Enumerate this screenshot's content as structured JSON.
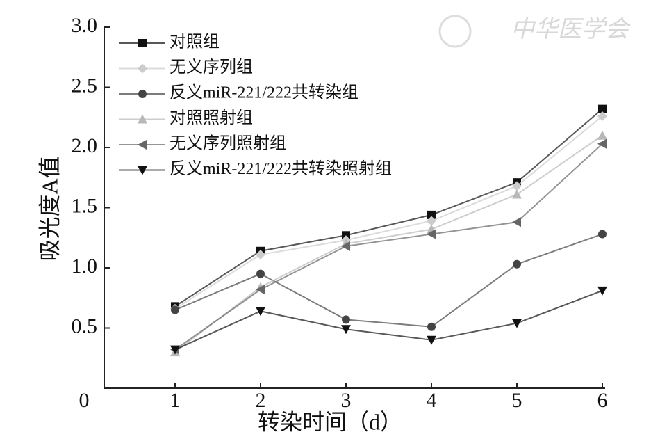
{
  "chart_data": {
    "type": "line",
    "watermark": "中华医学会",
    "xlabel": "转染时间（d）",
    "ylabel": "吸光度A值",
    "xlim": [
      0,
      6
    ],
    "xticks": [
      0,
      1,
      2,
      3,
      4,
      5,
      6
    ],
    "ylim": [
      0,
      3.0
    ],
    "yticks": [
      {
        "value": 0.5,
        "label": "0.5"
      },
      {
        "value": 1.0,
        "label": "1.0"
      },
      {
        "value": 1.5,
        "label": "1.5"
      },
      {
        "value": 2.0,
        "label": "2.0"
      },
      {
        "value": 2.5,
        "label": "2.5"
      },
      {
        "value": 3.0,
        "label": "3.0"
      }
    ],
    "x": [
      1,
      2,
      3,
      4,
      5,
      6
    ],
    "series": [
      {
        "name": "对照组",
        "color": "#111111",
        "marker": "square",
        "values": [
          0.68,
          1.14,
          1.27,
          1.44,
          1.71,
          2.32
        ]
      },
      {
        "name": "无义序列组",
        "color": "#cccccc",
        "marker": "diamond",
        "values": [
          0.66,
          1.11,
          1.23,
          1.39,
          1.68,
          2.26
        ]
      },
      {
        "name": "反义miR-221/222共转染组",
        "color": "#444444",
        "marker": "circle",
        "values": [
          0.65,
          0.95,
          0.57,
          0.51,
          1.03,
          1.28
        ]
      },
      {
        "name": "对照照射组",
        "color": "#b8b8b8",
        "marker": "triangle-up",
        "values": [
          0.3,
          0.84,
          1.2,
          1.32,
          1.61,
          2.1
        ]
      },
      {
        "name": "无义序列照射组",
        "color": "#666666",
        "marker": "triangle-left",
        "values": [
          0.32,
          0.82,
          1.18,
          1.28,
          1.38,
          2.03
        ]
      },
      {
        "name": "反义miR-221/222共转染照射组",
        "color": "#111111",
        "marker": "triangle-down",
        "values": [
          0.32,
          0.64,
          0.49,
          0.4,
          0.54,
          0.81
        ]
      }
    ]
  }
}
